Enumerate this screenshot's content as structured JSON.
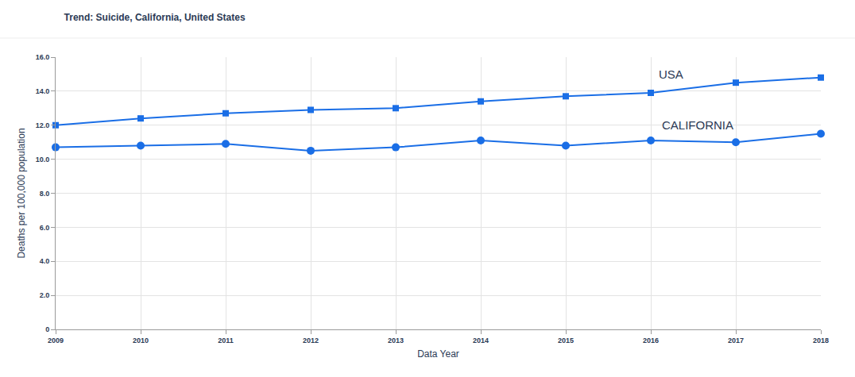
{
  "chart_data": {
    "type": "line",
    "title": "Trend: Suicide, California, United States",
    "x_label": "Data Year",
    "y_label": "Deaths per 100,000 population",
    "x": [
      2009,
      2010,
      2011,
      2012,
      2013,
      2014,
      2015,
      2016,
      2017,
      2018
    ],
    "series": [
      {
        "name": "USA",
        "color": "#1a6ee6",
        "marker": "square",
        "values": [
          12.0,
          12.4,
          12.7,
          12.9,
          13.0,
          13.4,
          13.7,
          13.9,
          14.5,
          14.8
        ]
      },
      {
        "name": "CALIFORNIA",
        "color": "#1a6ee6",
        "marker": "circle",
        "values": [
          10.7,
          10.8,
          10.9,
          10.5,
          10.7,
          11.1,
          10.8,
          11.1,
          11.0,
          11.5
        ]
      }
    ],
    "xlim": [
      2009,
      2018
    ],
    "xticks": [
      2009,
      2010,
      2011,
      2012,
      2013,
      2014,
      2015,
      2016,
      2017,
      2018
    ],
    "ylim": [
      0,
      16
    ],
    "yticks": [
      0,
      {
        "value": 2,
        "label": "2.0"
      },
      {
        "value": 4,
        "label": "4.0"
      },
      {
        "value": 6,
        "label": "6.0"
      },
      {
        "value": 8,
        "label": "8.0"
      },
      {
        "value": 10,
        "label": "10.0"
      },
      {
        "value": 12,
        "label": "12.0"
      },
      {
        "value": 14,
        "label": "14.0"
      },
      {
        "value": 16,
        "label": "16.0"
      }
    ],
    "grid": true
  }
}
